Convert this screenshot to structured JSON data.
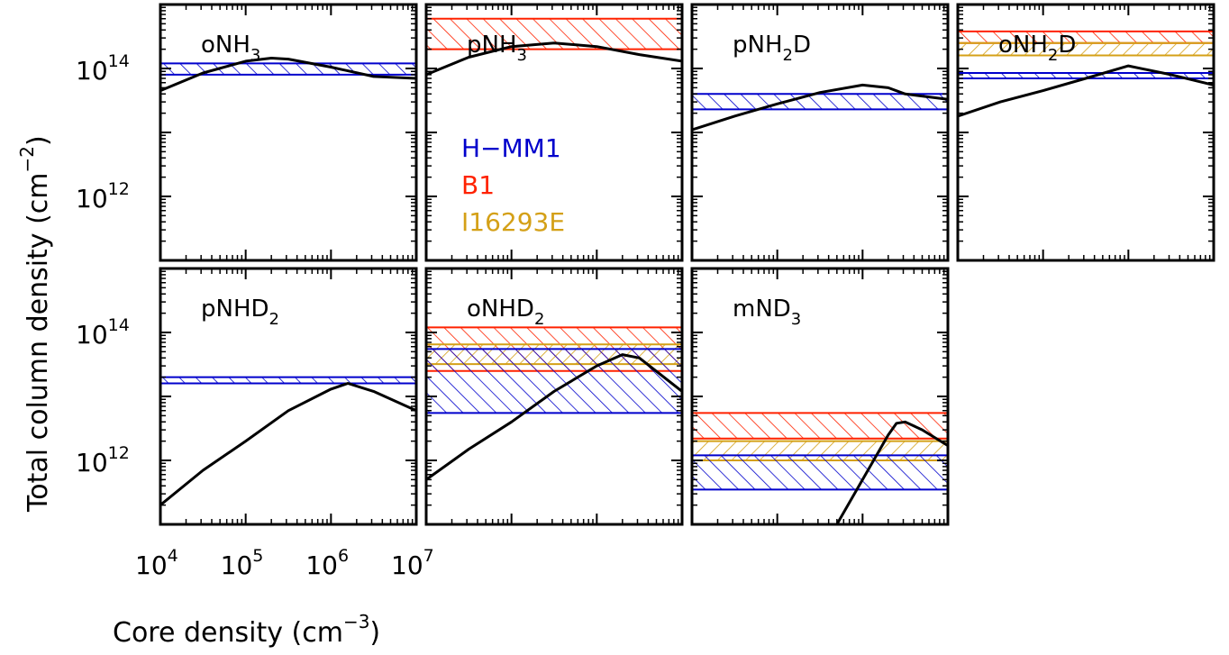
{
  "chart_data": {
    "type": "line",
    "title": "",
    "xlabel": {
      "text": "Core density  (cm",
      "sup": "−3",
      "close": ")"
    },
    "ylabel": {
      "text": "Total column density (cm",
      "sup": "−2",
      "close": ")"
    },
    "xlog": true,
    "ylog": true,
    "xlim": [
      10000,
      10000000
    ],
    "ylim": [
      100000000000.0,
      1000000000000000.0
    ],
    "xticks": [
      {
        "base": "10",
        "exp": "4",
        "value": 10000
      },
      {
        "base": "10",
        "exp": "5",
        "value": 100000
      },
      {
        "base": "10",
        "exp": "6",
        "value": 1000000
      },
      {
        "base": "10",
        "exp": "7",
        "value": 10000000
      }
    ],
    "yticks": [
      {
        "base": "10",
        "exp": "14",
        "value": 100000000000000.0
      },
      {
        "base": "10",
        "exp": "12",
        "value": 1000000000000.0
      }
    ],
    "legend": {
      "placement": "inside panel 2",
      "entries": [
        {
          "label": "H−MM1",
          "color": "#0000cc"
        },
        {
          "label": "B1",
          "color": "#ff2200"
        },
        {
          "label": "I16293E",
          "color": "#d4a017"
        }
      ]
    },
    "colors": {
      "model": "#000000",
      "H-MM1": "#0000cc",
      "B1": "#ff2200",
      "I16293E": "#d4a017"
    },
    "panels": [
      {
        "label": "oNH",
        "sub": "3",
        "suffix": "",
        "model_x": [
          10000,
          31600,
          100000,
          200000,
          316000,
          1000000,
          3160000,
          10000000
        ],
        "model_y": [
          45000000000000.0,
          85000000000000.0,
          130000000000000.0,
          145000000000000.0,
          140000000000000.0,
          105000000000000.0,
          75000000000000.0,
          70000000000000.0
        ],
        "bands": [
          {
            "source": "H-MM1",
            "low": 80000000000000.0,
            "high": 120000000000000.0
          }
        ]
      },
      {
        "label": "pNH",
        "sub": "3",
        "suffix": "",
        "model_x": [
          10000,
          31600,
          100000,
          316000,
          1000000,
          3160000,
          10000000
        ],
        "model_y": [
          80000000000000.0,
          150000000000000.0,
          220000000000000.0,
          250000000000000.0,
          220000000000000.0,
          165000000000000.0,
          130000000000000.0
        ],
        "bands": [
          {
            "source": "B1",
            "low": 200000000000000.0,
            "high": 600000000000000.0
          }
        ]
      },
      {
        "label": "pNH",
        "sub": "2",
        "suffix": "D",
        "model_x": [
          10000,
          31600,
          100000,
          316000,
          1000000,
          2000000,
          3160000,
          10000000
        ],
        "model_y": [
          11000000000000.0,
          18000000000000.0,
          28000000000000.0,
          42000000000000.0,
          55000000000000.0,
          50000000000000.0,
          40000000000000.0,
          33000000000000.0
        ],
        "bands": [
          {
            "source": "H-MM1",
            "low": 23000000000000.0,
            "high": 40000000000000.0
          }
        ]
      },
      {
        "label": "oNH",
        "sub": "2",
        "suffix": "D",
        "model_x": [
          10000,
          31600,
          100000,
          316000,
          1000000,
          3160000,
          10000000
        ],
        "model_y": [
          18000000000000.0,
          30000000000000.0,
          45000000000000.0,
          70000000000000.0,
          110000000000000.0,
          80000000000000.0,
          55000000000000.0
        ],
        "bands": [
          {
            "source": "B1",
            "low": 250000000000000.0,
            "high": 380000000000000.0
          },
          {
            "source": "I16293E",
            "low": 160000000000000.0,
            "high": 250000000000000.0
          },
          {
            "source": "H-MM1",
            "low": 70000000000000.0,
            "high": 85000000000000.0
          }
        ]
      },
      {
        "label": "pNHD",
        "sub": "2",
        "suffix": "",
        "model_x": [
          10000,
          31600,
          100000,
          316000,
          1000000,
          1580000,
          3160000,
          10000000
        ],
        "model_y": [
          200000000000.0,
          700000000000.0,
          2000000000000.0,
          6000000000000.0,
          13000000000000.0,
          16000000000000.0,
          12000000000000.0,
          6000000000000.0
        ],
        "bands": [
          {
            "source": "H-MM1",
            "low": 16000000000000.0,
            "high": 20000000000000.0
          }
        ]
      },
      {
        "label": "oNHD",
        "sub": "2",
        "suffix": "",
        "model_x": [
          10000,
          31600,
          100000,
          316000,
          1000000,
          2000000,
          3160000,
          10000000
        ],
        "model_y": [
          500000000000.0,
          1500000000000.0,
          4000000000000.0,
          12000000000000.0,
          30000000000000.0,
          45000000000000.0,
          40000000000000.0,
          12000000000000.0
        ],
        "bands": [
          {
            "source": "B1",
            "low": 25000000000000.0,
            "high": 120000000000000.0
          },
          {
            "source": "I16293E",
            "low": 32000000000000.0,
            "high": 65000000000000.0
          },
          {
            "source": "H-MM1",
            "low": 5500000000000.0,
            "high": 55000000000000.0
          }
        ]
      },
      {
        "label": "mND",
        "sub": "3",
        "suffix": "",
        "model_x": [
          500000,
          1000000,
          2000000,
          2500000,
          3160000,
          5000000,
          10000000
        ],
        "model_y": [
          100000000000.0,
          500000000000.0,
          2500000000000.0,
          3800000000000.0,
          4000000000000.0,
          3000000000000.0,
          1700000000000.0
        ],
        "bands": [
          {
            "source": "B1",
            "low": 2200000000000.0,
            "high": 5500000000000.0
          },
          {
            "source": "I16293E",
            "low": 1000000000000.0,
            "high": 2000000000000.0
          },
          {
            "source": "H-MM1",
            "low": 350000000000.0,
            "high": 1200000000000.0
          }
        ]
      }
    ]
  }
}
